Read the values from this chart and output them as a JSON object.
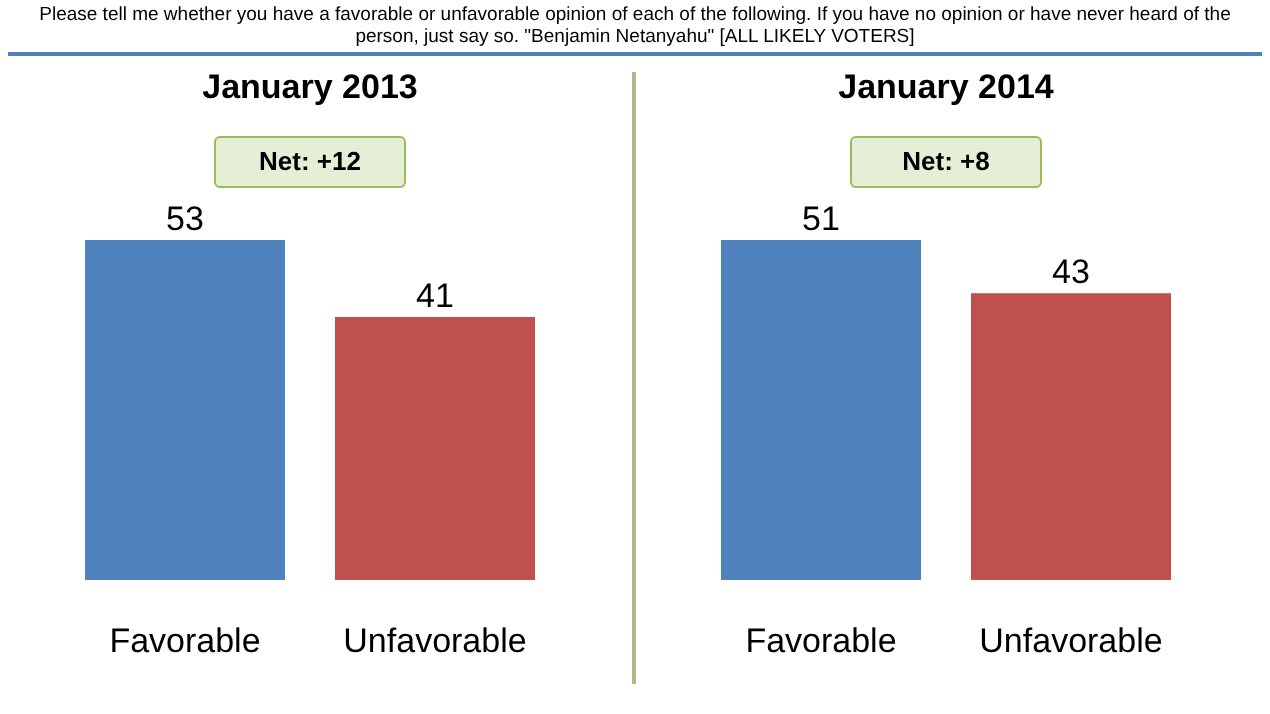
{
  "chart_data": [
    {
      "type": "bar",
      "title": "January 2013",
      "categories": [
        "Favorable",
        "Unfavorable"
      ],
      "values": [
        53,
        41
      ],
      "colors": [
        "#4f81bd",
        "#c0504d"
      ],
      "data_labels": true,
      "annotations": [
        "Please tell me whether you have a favorable or unfavorable opinion of each of the following. If you have no opinion or have never heard of the person, just say so. \"Benjamin Netanyahu\" [ALL LIKELY VOTERS]",
        "Net: +12"
      ]
    },
    {
      "type": "bar",
      "title": "January 2014",
      "categories": [
        "Favorable",
        "Unfavorable"
      ],
      "values": [
        51,
        43
      ],
      "colors": [
        "#4f81bd",
        "#c0504d"
      ],
      "data_labels": true,
      "annotations": [
        "Net: +8"
      ]
    }
  ]
}
